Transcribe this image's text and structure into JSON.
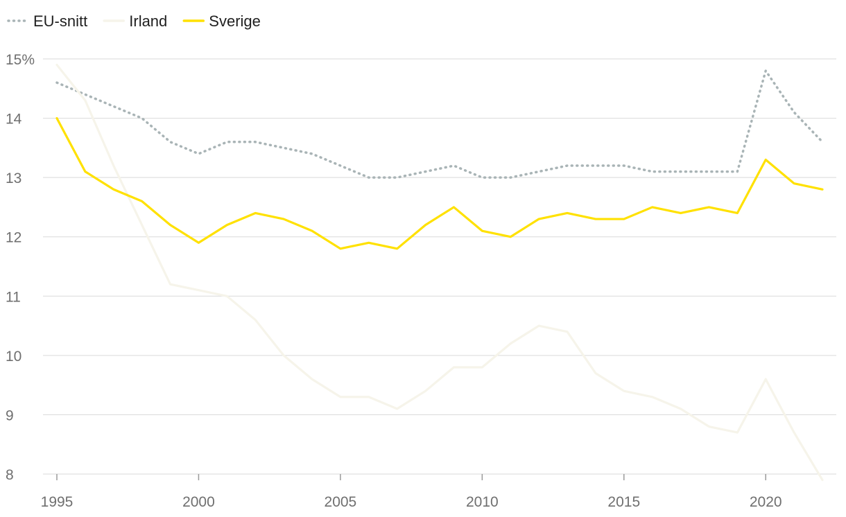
{
  "chart_data": {
    "type": "line",
    "title": "",
    "xlabel": "",
    "ylabel": "",
    "x": [
      1995,
      1996,
      1997,
      1998,
      1999,
      2000,
      2001,
      2002,
      2003,
      2004,
      2005,
      2006,
      2007,
      2008,
      2009,
      2010,
      2011,
      2012,
      2013,
      2014,
      2015,
      2016,
      2017,
      2018,
      2019,
      2020,
      2021,
      2022
    ],
    "xlim": [
      1995,
      2022
    ],
    "ylim": [
      8,
      15
    ],
    "x_ticks": [
      1995,
      2000,
      2005,
      2010,
      2015,
      2020
    ],
    "x_tick_labels": [
      "1995",
      "2000",
      "2005",
      "2010",
      "2015",
      "2020"
    ],
    "y_ticks": [
      8,
      9,
      10,
      11,
      12,
      13,
      14,
      15
    ],
    "y_tick_labels": [
      "8",
      "9",
      "10",
      "11",
      "12",
      "13",
      "14",
      "15%"
    ],
    "grid": true,
    "legend_position": "top-left",
    "series": [
      {
        "name": "EU-snitt",
        "color": "#a9b4b6",
        "style": "dotted",
        "values": [
          14.6,
          14.4,
          14.2,
          14.0,
          13.6,
          13.4,
          13.6,
          13.6,
          13.5,
          13.4,
          13.2,
          13.0,
          13.0,
          13.1,
          13.2,
          13.0,
          13.0,
          13.1,
          13.2,
          13.2,
          13.2,
          13.1,
          13.1,
          13.1,
          13.1,
          14.8,
          14.1,
          13.6
        ]
      },
      {
        "name": "Irland",
        "color": "#f6f4ea",
        "style": "solid",
        "values": [
          14.9,
          14.3,
          13.2,
          12.2,
          11.2,
          11.1,
          11.0,
          10.6,
          10.0,
          9.6,
          9.3,
          9.3,
          9.1,
          9.4,
          9.8,
          9.8,
          10.2,
          10.5,
          10.4,
          9.7,
          9.4,
          9.3,
          9.1,
          8.8,
          8.7,
          9.6,
          8.7,
          7.9
        ]
      },
      {
        "name": "Sverige",
        "color": "#ffe100",
        "style": "solid",
        "values": [
          14.0,
          13.1,
          12.8,
          12.6,
          12.2,
          11.9,
          12.2,
          12.4,
          12.3,
          12.1,
          11.8,
          11.9,
          11.8,
          12.2,
          12.5,
          12.1,
          12.0,
          12.3,
          12.4,
          12.3,
          12.3,
          12.5,
          12.4,
          12.5,
          12.4,
          13.3,
          12.9,
          12.8
        ]
      }
    ]
  }
}
